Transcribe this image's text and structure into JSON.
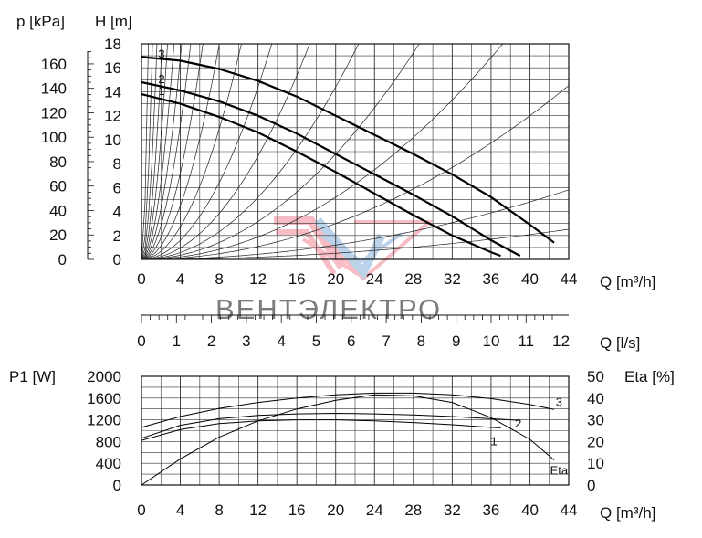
{
  "chart_data": [
    {
      "type": "line",
      "panel": "head-curve",
      "xlabel": "Q [m³/h]",
      "ylabel_left": "p [kPa]",
      "ylabel_right": "H [m]",
      "xlim": [
        0,
        44
      ],
      "ylim_H": [
        0,
        18
      ],
      "ylim_p": [
        0,
        176.4
      ],
      "x_ticks": [
        0,
        4,
        8,
        12,
        16,
        20,
        24,
        28,
        32,
        36,
        40,
        44
      ],
      "H_ticks": [
        0,
        2,
        4,
        6,
        8,
        10,
        12,
        14,
        16,
        18
      ],
      "p_ticks": [
        0,
        20,
        40,
        60,
        80,
        100,
        120,
        140,
        160
      ],
      "grid": true,
      "series": [
        {
          "name": "1",
          "x": [
            0,
            4,
            8,
            12,
            16,
            20,
            24,
            28,
            32,
            36,
            37
          ],
          "y": [
            13.8,
            13.0,
            11.9,
            10.6,
            9.0,
            7.3,
            5.5,
            3.7,
            2.0,
            0.6,
            0.3
          ]
        },
        {
          "name": "2",
          "x": [
            0,
            4,
            8,
            12,
            16,
            20,
            24,
            28,
            32,
            36,
            39
          ],
          "y": [
            14.8,
            14.1,
            13.2,
            12.0,
            10.5,
            8.8,
            7.1,
            5.4,
            3.6,
            1.6,
            0.3
          ]
        },
        {
          "name": "3",
          "x": [
            0,
            4,
            8,
            12,
            16,
            20,
            24,
            28,
            32,
            36,
            40,
            42.5
          ],
          "y": [
            16.9,
            16.6,
            15.9,
            14.9,
            13.6,
            12.0,
            10.4,
            8.8,
            7.1,
            5.2,
            2.9,
            1.4
          ]
        }
      ],
      "system_curve_coefficients": [
        35,
        14,
        7,
        4,
        2.5,
        1.6,
        1.05,
        0.7,
        0.45,
        0.28,
        0.17,
        0.1,
        0.06,
        0.036,
        0.022,
        0.013,
        0.0075,
        0.003,
        0.0013
      ]
    },
    {
      "type": "axis",
      "panel": "flow-lps",
      "xlabel": "Q [l/s]",
      "xlim": [
        0,
        12.22
      ],
      "x_ticks": [
        0,
        1,
        2,
        3,
        4,
        5,
        6,
        7,
        8,
        9,
        10,
        11,
        12
      ]
    },
    {
      "type": "line",
      "panel": "power-efficiency",
      "xlabel": "Q [m³/h]",
      "ylabel_left": "P1 [W]",
      "ylabel_right": "Eta [%]",
      "xlim": [
        0,
        44
      ],
      "ylim_P": [
        0,
        2000
      ],
      "ylim_eta": [
        0,
        50
      ],
      "x_ticks": [
        0,
        4,
        8,
        12,
        16,
        20,
        24,
        28,
        32,
        36,
        40,
        44
      ],
      "P_ticks": [
        0,
        400,
        800,
        1200,
        1600,
        2000
      ],
      "eta_ticks": [
        0,
        10,
        20,
        30,
        40,
        50
      ],
      "grid": true,
      "power_series": [
        {
          "name": "1",
          "x": [
            0,
            4,
            8,
            12,
            16,
            20,
            24,
            28,
            32,
            36,
            37
          ],
          "y": [
            820,
            1020,
            1130,
            1180,
            1200,
            1200,
            1180,
            1150,
            1110,
            1060,
            1050
          ]
        },
        {
          "name": "2",
          "x": [
            0,
            4,
            8,
            12,
            16,
            20,
            24,
            28,
            32,
            36,
            39
          ],
          "y": [
            860,
            1100,
            1220,
            1280,
            1310,
            1320,
            1310,
            1290,
            1260,
            1220,
            1190
          ]
        },
        {
          "name": "3",
          "x": [
            0,
            4,
            8,
            12,
            16,
            20,
            24,
            28,
            32,
            36,
            40,
            42.5
          ],
          "y": [
            1060,
            1260,
            1410,
            1520,
            1600,
            1660,
            1690,
            1690,
            1660,
            1590,
            1480,
            1390
          ]
        }
      ],
      "eta_series": {
        "name": "Eta",
        "x": [
          0,
          4,
          8,
          12,
          16,
          20,
          24,
          28,
          32,
          36,
          40,
          42.5
        ],
        "y": [
          0,
          12,
          22,
          29.5,
          35,
          39,
          41.5,
          41,
          38,
          31,
          21,
          11.5
        ]
      }
    }
  ],
  "watermark": "ВЕНТЭЛЕКТРО"
}
